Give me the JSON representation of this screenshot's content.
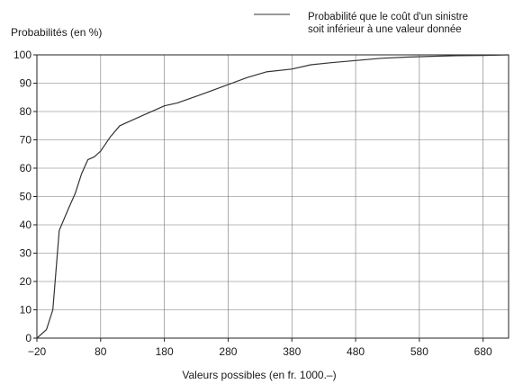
{
  "chart_data": {
    "type": "line",
    "ylabel": "Probabilités (en %)",
    "xlabel": "Valeurs possibles (en fr. 1000.–)",
    "legend_position": "top-right",
    "grid": true,
    "xlim": [
      -20,
      720
    ],
    "ylim": [
      0,
      100
    ],
    "x_ticks": [
      -20,
      80,
      180,
      280,
      380,
      480,
      580,
      680
    ],
    "x_tick_labels": [
      "−20",
      "80",
      "180",
      "280",
      "380",
      "480",
      "580",
      "680"
    ],
    "y_ticks": [
      0,
      10,
      20,
      30,
      40,
      50,
      60,
      70,
      80,
      90,
      100
    ],
    "y_tick_labels": [
      "0",
      "10",
      "20",
      "30",
      "40",
      "50",
      "60",
      "70",
      "80",
      "90",
      "100"
    ],
    "series": [
      {
        "name": "Probabilité que le coût d'un sinistre soit inférieur à une valeur donnée",
        "color": "#333333",
        "x": [
          -20,
          -5,
          5,
          15,
          30,
          40,
          50,
          60,
          70,
          80,
          95,
          110,
          130,
          150,
          165,
          180,
          200,
          225,
          250,
          280,
          310,
          340,
          380,
          410,
          440,
          480,
          520,
          560,
          600,
          640,
          680,
          720
        ],
        "y": [
          0,
          3,
          10,
          38,
          46,
          51,
          58,
          63,
          64,
          66,
          71,
          75,
          77,
          79,
          80.5,
          82,
          83,
          85,
          87,
          89.5,
          92,
          94,
          95,
          96.5,
          97.2,
          98,
          98.8,
          99.2,
          99.5,
          99.7,
          99.8,
          100
        ]
      }
    ]
  }
}
